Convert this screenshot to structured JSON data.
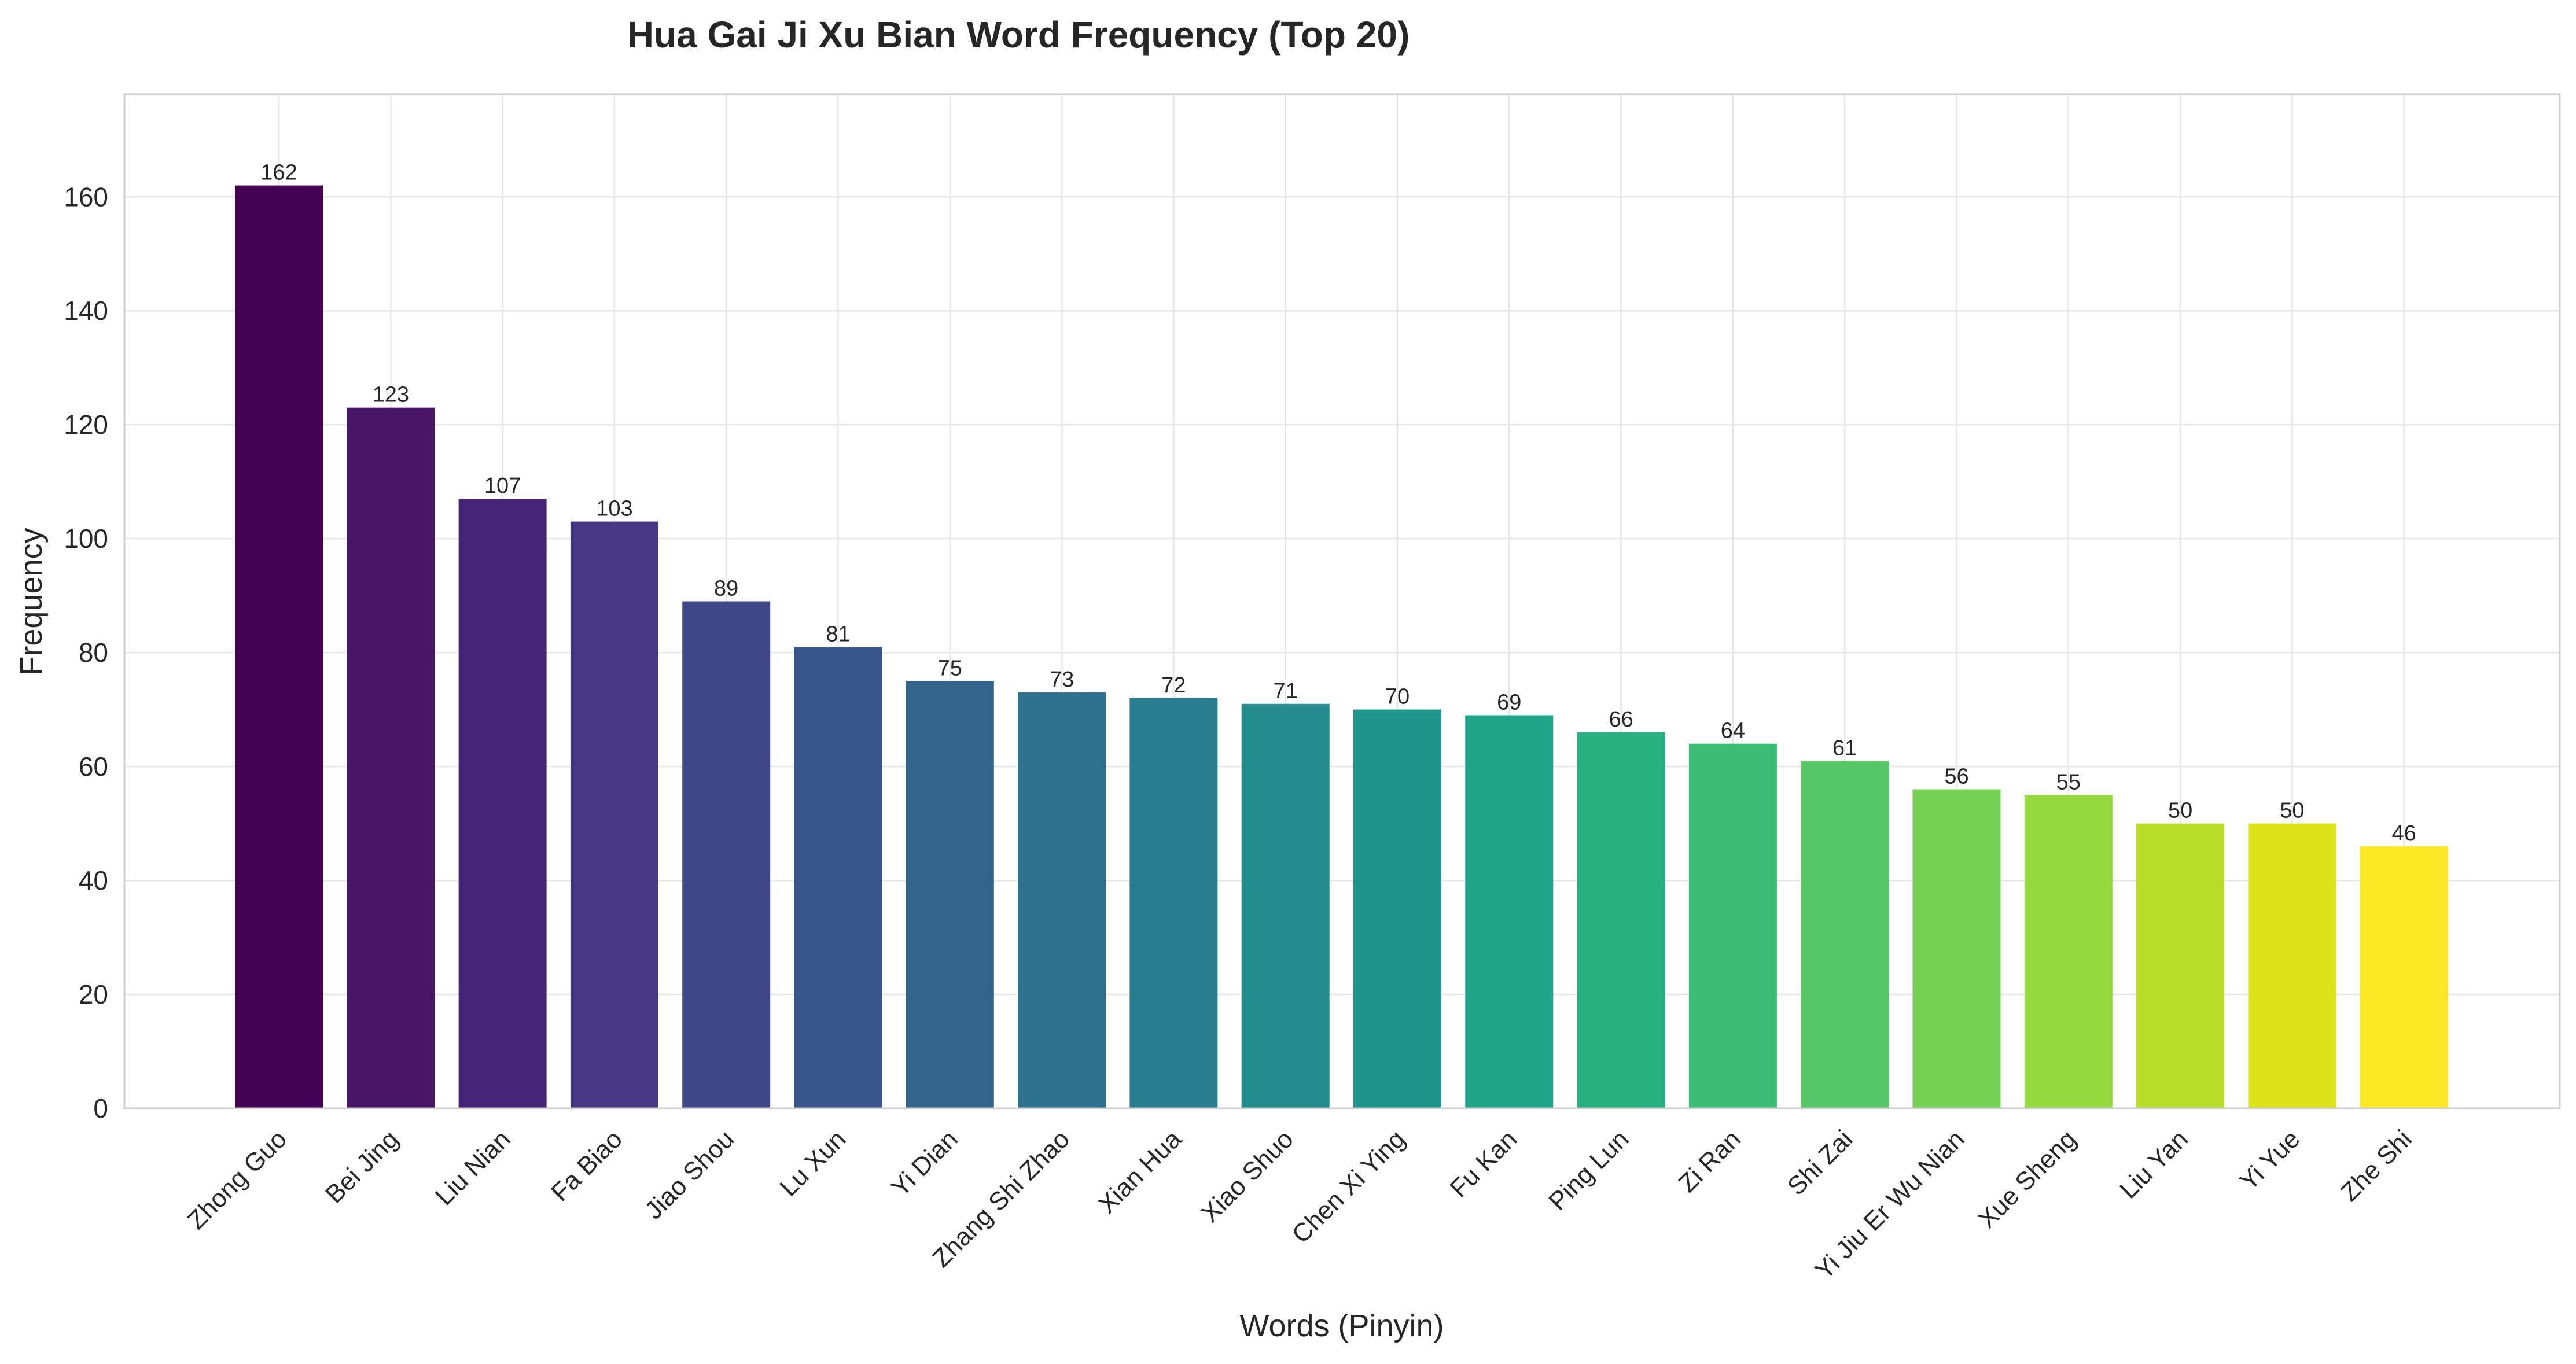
{
  "chart_data": {
    "type": "bar",
    "title": "Hua Gai Ji Xu Bian Word Frequency (Top 20)",
    "xlabel": "Words (Pinyin)",
    "ylabel": "Frequency",
    "categories": [
      "Zhong Guo",
      "Bei Jing",
      "Liu Nian",
      "Fa Biao",
      "Jiao Shou",
      "Lu Xun",
      "Yi Dian",
      "Zhang Shi Zhao",
      "Xian Hua",
      "Xiao Shuo",
      "Chen Xi Ying",
      "Fu Kan",
      "Ping Lun",
      "Zi Ran",
      "Shi Zai",
      "Yi Jiu Er Wu Nian",
      "Xue Sheng",
      "Liu Yan",
      "Yi Yue",
      "Zhe Shi"
    ],
    "values": [
      162,
      123,
      107,
      103,
      89,
      81,
      75,
      73,
      72,
      71,
      70,
      69,
      66,
      64,
      61,
      56,
      55,
      50,
      50,
      46
    ],
    "ylim": [
      0,
      178
    ],
    "yticks": [
      0,
      20,
      40,
      60,
      80,
      100,
      120,
      140,
      160
    ],
    "grid": true,
    "colormap": "viridis",
    "colors": [
      "#440154",
      "#481567",
      "#482677",
      "#453781",
      "#3f4788",
      "#39558c",
      "#32648e",
      "#2d718e",
      "#287d8e",
      "#238a8d",
      "#1f968b",
      "#20a386",
      "#29af7f",
      "#3cbc75",
      "#56c667",
      "#75d054",
      "#95d840",
      "#bade28",
      "#dde318",
      "#fde725"
    ]
  }
}
